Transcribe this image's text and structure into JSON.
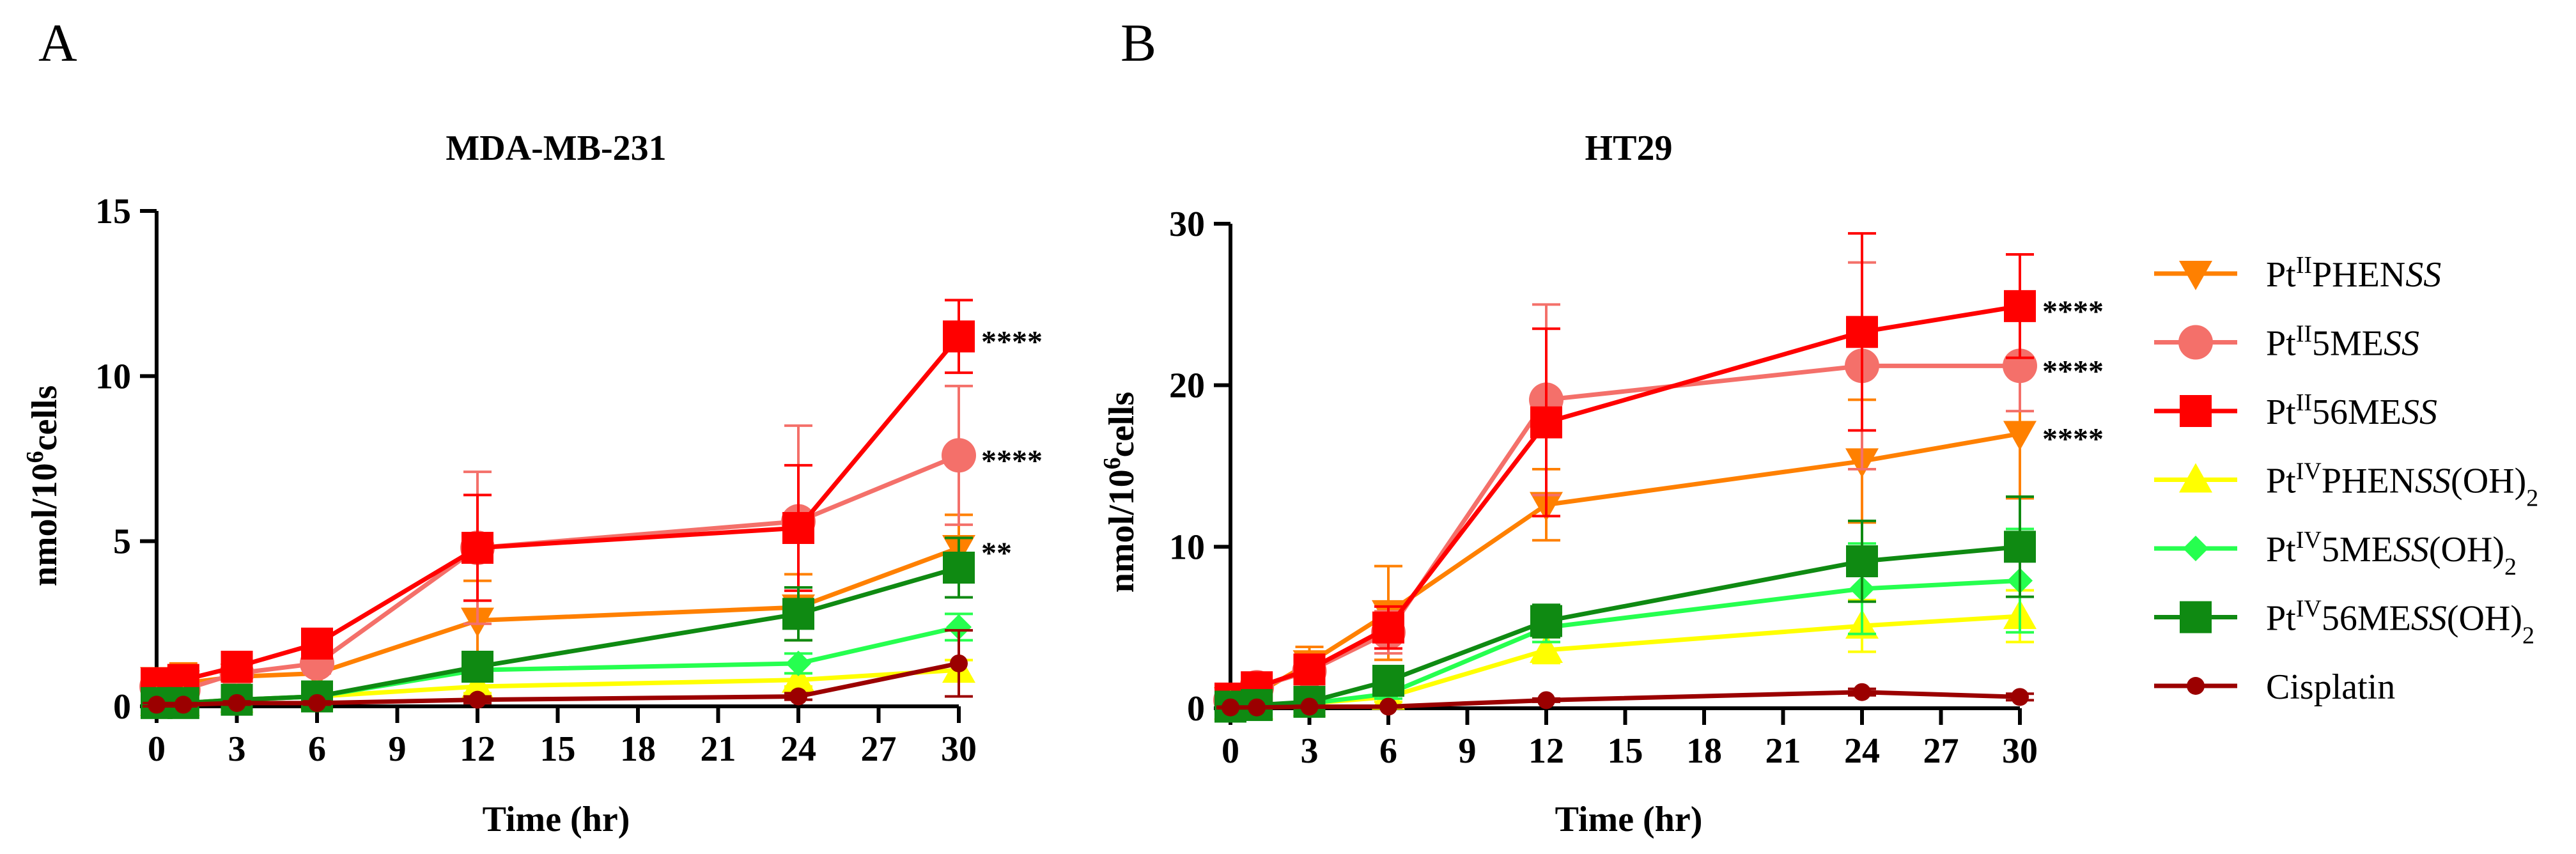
{
  "figure": {
    "panels": [
      "A",
      "B"
    ]
  },
  "chart_data": [
    {
      "type": "line",
      "panel_label": "A",
      "title": "MDA-MB-231",
      "xlabel": "Time (hr)",
      "ylabel_base": "nmol/10",
      "ylabel_sup": "6",
      "ylabel_tail": "cells",
      "xlim": [
        0,
        30
      ],
      "ylim": [
        0,
        15
      ],
      "xticks": [
        0,
        3,
        6,
        9,
        12,
        15,
        18,
        21,
        24,
        27,
        30
      ],
      "yticks": [
        0,
        5,
        10,
        15
      ],
      "x": [
        0,
        1,
        3,
        6,
        12,
        24,
        30
      ],
      "series": [
        {
          "name": "PtIIPHENSS",
          "color": "#ff8000",
          "marker": "triangle-down",
          "values": [
            0.8,
            0.7,
            0.9,
            1.0,
            2.6,
            3.0,
            4.8
          ],
          "errors": [
            0.3,
            0.6,
            0.3,
            0.3,
            1.2,
            1.0,
            1.0
          ],
          "significance": "**"
        },
        {
          "name": "PtII5MESS",
          "color": "#f4706a",
          "marker": "circle",
          "values": [
            0.6,
            0.5,
            1.0,
            1.3,
            4.8,
            5.6,
            7.6
          ],
          "errors": [
            0.3,
            0.3,
            0.3,
            0.3,
            2.3,
            2.9,
            2.1
          ],
          "significance": "****"
        },
        {
          "name": "PtII56MESS",
          "color": "#ff0000",
          "marker": "square",
          "values": [
            0.7,
            0.8,
            1.2,
            1.9,
            4.8,
            5.4,
            11.2
          ],
          "errors": [
            0.3,
            0.3,
            0.3,
            0.3,
            1.6,
            1.9,
            1.1
          ],
          "significance": "****"
        },
        {
          "name": "PtIVPHENSS(OH)2",
          "color": "#ffff00",
          "marker": "triangle-up",
          "values": [
            0.1,
            0.1,
            0.2,
            0.3,
            0.6,
            0.8,
            1.1
          ],
          "errors": [
            0.1,
            0.1,
            0.1,
            0.1,
            0.2,
            0.2,
            0.3
          ],
          "significance": ""
        },
        {
          "name": "PtIV5MESS(OH)2",
          "color": "#26ff4f",
          "marker": "diamond",
          "values": [
            0.1,
            0.1,
            0.2,
            0.3,
            1.1,
            1.3,
            2.4
          ],
          "errors": [
            0.1,
            0.1,
            0.1,
            0.1,
            0.3,
            0.3,
            0.4
          ],
          "significance": ""
        },
        {
          "name": "PtIV56MESS(OH)2",
          "color": "#0f8a12",
          "marker": "square",
          "values": [
            0.1,
            0.1,
            0.2,
            0.3,
            1.2,
            2.8,
            4.2
          ],
          "errors": [
            0.1,
            0.1,
            0.1,
            0.1,
            0.3,
            0.8,
            0.9
          ],
          "significance": ""
        },
        {
          "name": "Cisplatin",
          "color": "#9b0000",
          "marker": "circle-small",
          "values": [
            0.05,
            0.05,
            0.1,
            0.1,
            0.2,
            0.3,
            1.3
          ],
          "errors": [
            0.05,
            0.05,
            0.05,
            0.05,
            0.1,
            0.1,
            1.0
          ],
          "significance": ""
        }
      ]
    },
    {
      "type": "line",
      "panel_label": "B",
      "title": "HT29",
      "xlabel": "Time (hr)",
      "ylabel_base": "nmol/10",
      "ylabel_sup": "6",
      "ylabel_tail": "cells",
      "xlim": [
        0,
        30
      ],
      "ylim": [
        0,
        30
      ],
      "xticks": [
        0,
        3,
        6,
        9,
        12,
        15,
        18,
        21,
        24,
        27,
        30
      ],
      "yticks": [
        0,
        10,
        20,
        30
      ],
      "x": [
        0,
        1,
        3,
        6,
        12,
        24,
        30
      ],
      "series": [
        {
          "name": "PtIIPHENSS",
          "color": "#ff8000",
          "marker": "triangle-down",
          "values": [
            0.5,
            0.9,
            2.8,
            5.9,
            12.6,
            15.3,
            17.0
          ],
          "errors": [
            0.4,
            0.6,
            1.0,
            2.9,
            2.2,
            3.8,
            4.0
          ],
          "significance": "****"
        },
        {
          "name": "PtII5MESS",
          "color": "#f4706a",
          "marker": "circle",
          "values": [
            0.5,
            1.3,
            2.3,
            4.7,
            19.1,
            21.2,
            21.2
          ],
          "errors": [
            0.4,
            0.4,
            0.6,
            1.3,
            5.9,
            6.4,
            2.8
          ],
          "significance": "****"
        },
        {
          "name": "PtII56MESS",
          "color": "#ff0000",
          "marker": "square",
          "values": [
            0.6,
            1.3,
            2.4,
            5.0,
            17.7,
            23.3,
            24.9
          ],
          "errors": [
            0.4,
            0.4,
            0.6,
            1.3,
            5.8,
            6.1,
            3.2
          ],
          "significance": "****"
        },
        {
          "name": "PtIVPHENSS(OH)2",
          "color": "#ffff00",
          "marker": "triangle-up",
          "values": [
            0.1,
            0.1,
            0.3,
            0.7,
            3.6,
            5.1,
            5.7
          ],
          "errors": [
            0.1,
            0.1,
            0.2,
            0.3,
            0.8,
            1.6,
            1.6
          ],
          "significance": ""
        },
        {
          "name": "PtIV5MESS(OH)2",
          "color": "#26ff4f",
          "marker": "diamond",
          "values": [
            0.1,
            0.2,
            0.3,
            0.9,
            5.0,
            7.4,
            7.9
          ],
          "errors": [
            0.1,
            0.1,
            0.2,
            0.3,
            0.9,
            2.8,
            3.2
          ],
          "significance": ""
        },
        {
          "name": "PtIV56MESS(OH)2",
          "color": "#0f8a12",
          "marker": "square",
          "values": [
            0.1,
            0.2,
            0.4,
            1.7,
            5.4,
            9.1,
            10.0
          ],
          "errors": [
            0.1,
            0.1,
            0.2,
            0.3,
            1.0,
            2.5,
            3.1
          ],
          "significance": ""
        },
        {
          "name": "Cisplatin",
          "color": "#9b0000",
          "marker": "circle-small",
          "values": [
            0.05,
            0.05,
            0.1,
            0.1,
            0.5,
            1.0,
            0.7
          ],
          "errors": [
            0.05,
            0.05,
            0.05,
            0.05,
            0.1,
            0.2,
            0.2
          ],
          "significance": ""
        }
      ]
    }
  ],
  "legend": {
    "placement": "right",
    "items": [
      {
        "base": "Pt",
        "sup": "II",
        "main": "PHEN",
        "ital": "SS",
        "tail": "",
        "sub": "",
        "color": "#ff8000",
        "marker": "triangle-down"
      },
      {
        "base": "Pt",
        "sup": "II",
        "main": "5ME",
        "ital": "SS",
        "tail": "",
        "sub": "",
        "color": "#f4706a",
        "marker": "circle"
      },
      {
        "base": "Pt",
        "sup": "II",
        "main": "56ME",
        "ital": "SS",
        "tail": "",
        "sub": "",
        "color": "#ff0000",
        "marker": "square"
      },
      {
        "base": "Pt",
        "sup": "IV",
        "main": "PHEN",
        "ital": "SS",
        "tail": "(OH)",
        "sub": "2",
        "color": "#ffff00",
        "marker": "triangle-up"
      },
      {
        "base": "Pt",
        "sup": "IV",
        "main": "5ME",
        "ital": "SS",
        "tail": "(OH)",
        "sub": "2",
        "color": "#26ff4f",
        "marker": "diamond"
      },
      {
        "base": "Pt",
        "sup": "IV",
        "main": "56ME",
        "ital": "SS",
        "tail": "(OH)",
        "sub": "2",
        "color": "#0f8a12",
        "marker": "square"
      },
      {
        "base": "Cisplatin",
        "sup": "",
        "main": "",
        "ital": "",
        "tail": "",
        "sub": "",
        "color": "#9b0000",
        "marker": "circle-small"
      }
    ]
  }
}
